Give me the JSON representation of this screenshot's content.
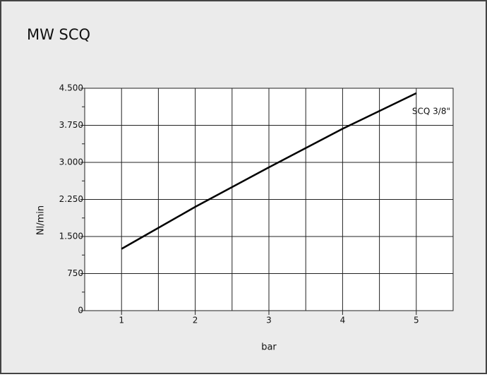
{
  "chart_data": {
    "type": "line",
    "title": "MW SCQ",
    "x_label": "bar",
    "y_label": "Nl/min",
    "x": [
      1,
      2,
      3,
      4,
      5
    ],
    "series": [
      {
        "name": "SCQ 3/8\"",
        "color": "#000000",
        "values": [
          1250,
          2100,
          2900,
          3680,
          4400
        ]
      }
    ],
    "xlim": [
      0.5,
      5.5
    ],
    "xticks": [
      1,
      2,
      3,
      4,
      5
    ],
    "x_minor_ticks": [
      1.5,
      2.5,
      3.5,
      4.5
    ],
    "ylim": [
      0,
      4500
    ],
    "yticks": [
      0,
      750,
      {
        "value": 1500,
        "label": "1.500"
      },
      {
        "value": 2250,
        "label": "2.250"
      },
      {
        "value": 3000,
        "label": "3.000"
      },
      {
        "value": 3750,
        "label": "3.750"
      },
      {
        "value": 4500,
        "label": "4.500"
      }
    ],
    "y_minor_ticks": [
      375,
      1125,
      1875,
      2625,
      3375,
      4125
    ],
    "grid": true
  }
}
